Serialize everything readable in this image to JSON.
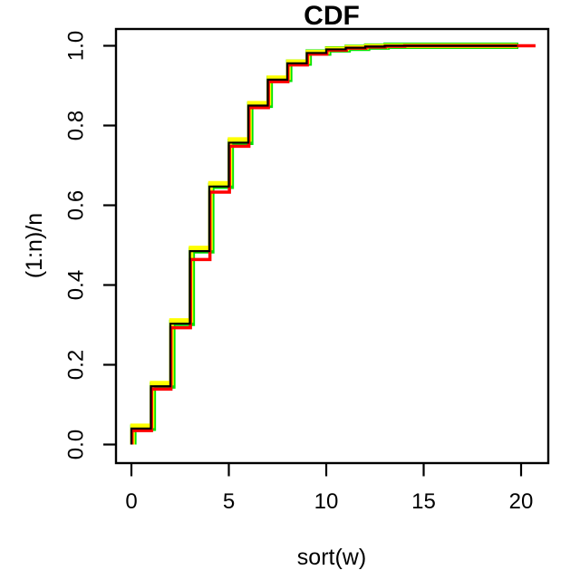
{
  "figure": {
    "title": "CDF",
    "xlabel": "sort(w)",
    "ylabel": "(1:n)/n"
  },
  "chart_data": {
    "type": "line",
    "subtype": "ecdf-step-overlay",
    "title": "CDF",
    "xlabel": "sort(w)",
    "ylabel": "(1:n)/n",
    "grid": false,
    "legend": "none",
    "background": "#ffffff",
    "frame_color": "#000000",
    "xlim": [
      -0.8,
      21.4
    ],
    "ylim": [
      -0.045,
      1.045
    ],
    "x_ticks": {
      "values": [
        0,
        5,
        10,
        15,
        20
      ],
      "labels": [
        "0",
        "5",
        "10",
        "15",
        "20"
      ]
    },
    "y_ticks": {
      "values": [
        0,
        0.2,
        0.4,
        0.6,
        0.8,
        1.0
      ],
      "labels": [
        "0.0",
        "0.2",
        "0.4",
        "0.6",
        "0.8",
        "1.0"
      ]
    },
    "series": [
      {
        "name": "green",
        "color": "#00E300",
        "line_width": 7,
        "x_offset": 0.1,
        "start_y": 0,
        "end_x": 19.86,
        "points": [
          [
            0,
            0.042
          ],
          [
            1,
            0.148
          ],
          [
            2,
            0.305
          ],
          [
            3,
            0.487
          ],
          [
            4,
            0.649
          ],
          [
            5,
            0.759
          ],
          [
            6,
            0.852
          ],
          [
            7,
            0.917
          ],
          [
            8,
            0.958
          ],
          [
            9,
            0.983
          ],
          [
            10,
            0.991
          ],
          [
            11,
            0.995
          ],
          [
            12,
            0.998
          ],
          [
            13,
            1.0
          ]
        ]
      },
      {
        "name": "yellow",
        "color": "#FFFF00",
        "line_width": 5,
        "x_offset": 0.06,
        "start_y": 0,
        "end_x": 19.8,
        "points": [
          [
            0,
            0.047
          ],
          [
            1,
            0.154
          ],
          [
            2,
            0.311
          ],
          [
            3,
            0.493
          ],
          [
            4,
            0.655
          ],
          [
            5,
            0.765
          ],
          [
            6,
            0.856
          ],
          [
            7,
            0.92
          ],
          [
            8,
            0.96
          ],
          [
            9,
            0.984
          ],
          [
            10,
            0.992
          ],
          [
            11,
            0.996
          ],
          [
            12,
            0.999
          ],
          [
            13,
            1.0
          ]
        ]
      },
      {
        "name": "red",
        "color": "#FF0000",
        "line_width": 3.5,
        "x_offset": 0.03,
        "start_y": 0,
        "end_x": 20.74,
        "points": [
          [
            0,
            0.035
          ],
          [
            1,
            0.139
          ],
          [
            2,
            0.293
          ],
          [
            3,
            0.464
          ],
          [
            4,
            0.633
          ],
          [
            5,
            0.748
          ],
          [
            6,
            0.845
          ],
          [
            7,
            0.91
          ],
          [
            8,
            0.952
          ],
          [
            9,
            0.979
          ],
          [
            10,
            0.989
          ],
          [
            11,
            0.994
          ],
          [
            12,
            0.997
          ],
          [
            13,
            0.999
          ],
          [
            14,
            1.0
          ]
        ]
      },
      {
        "name": "black",
        "color": "#000000",
        "line_width": 2.2,
        "x_offset": 0.0,
        "start_y": 0,
        "end_x": 19.8,
        "points": [
          [
            0,
            0.04
          ],
          [
            1,
            0.146
          ],
          [
            2,
            0.303
          ],
          [
            3,
            0.485
          ],
          [
            4,
            0.647
          ],
          [
            5,
            0.757
          ],
          [
            6,
            0.85
          ],
          [
            7,
            0.915
          ],
          [
            8,
            0.956
          ],
          [
            9,
            0.982
          ],
          [
            10,
            0.991
          ],
          [
            11,
            0.995
          ],
          [
            12,
            0.998
          ],
          [
            13,
            1.0
          ]
        ]
      }
    ]
  }
}
